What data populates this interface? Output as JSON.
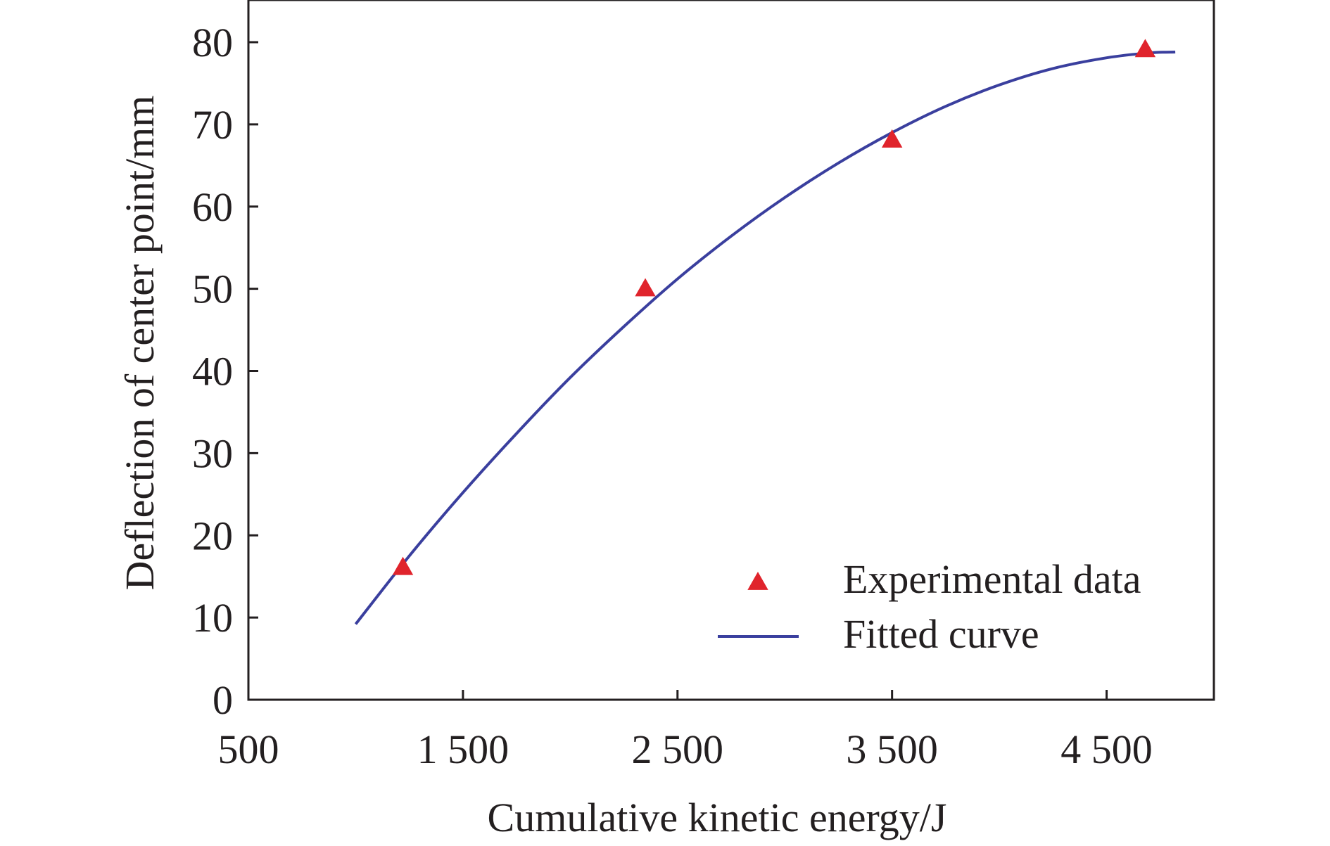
{
  "chart_data": {
    "type": "line",
    "title": "",
    "xlabel": "Cumulative kinetic energy/J",
    "ylabel": "Deflection of center point/mm",
    "xlim": [
      500,
      5000
    ],
    "ylim": [
      0,
      80
    ],
    "x_ticks": [
      500,
      1500,
      2500,
      3500,
      4500
    ],
    "x_tick_labels": [
      "500",
      "1 500",
      "2 500",
      "3 500",
      "4 500"
    ],
    "y_ticks": [
      0,
      10,
      20,
      30,
      40,
      50,
      60,
      70,
      80
    ],
    "y_tick_labels": [
      "0",
      "10",
      "20",
      "30",
      "40",
      "50",
      "60",
      "70",
      "80"
    ],
    "grid": false,
    "legend_position": "bottom-right",
    "series": [
      {
        "name": "Experimental data",
        "kind": "scatter",
        "marker": "triangle",
        "color": "#e0242c",
        "points": [
          {
            "x": 1220,
            "y": 16.2
          },
          {
            "x": 2350,
            "y": 50.1
          },
          {
            "x": 3500,
            "y": 68.2
          },
          {
            "x": 4680,
            "y": 79.2
          }
        ]
      },
      {
        "name": "Fitted curve",
        "kind": "line",
        "color": "#3a3f9e",
        "points": [
          {
            "x": 1000,
            "y": 9.2
          },
          {
            "x": 1250,
            "y": 17.5
          },
          {
            "x": 1500,
            "y": 25.2
          },
          {
            "x": 1750,
            "y": 32.4
          },
          {
            "x": 2000,
            "y": 39.2
          },
          {
            "x": 2250,
            "y": 45.4
          },
          {
            "x": 2500,
            "y": 51.2
          },
          {
            "x": 2750,
            "y": 56.4
          },
          {
            "x": 3000,
            "y": 61.1
          },
          {
            "x": 3250,
            "y": 65.3
          },
          {
            "x": 3500,
            "y": 69.0
          },
          {
            "x": 3750,
            "y": 72.2
          },
          {
            "x": 4000,
            "y": 74.8
          },
          {
            "x": 4250,
            "y": 76.8
          },
          {
            "x": 4500,
            "y": 78.1
          },
          {
            "x": 4700,
            "y": 78.7
          },
          {
            "x": 4820,
            "y": 78.8
          }
        ]
      }
    ]
  }
}
